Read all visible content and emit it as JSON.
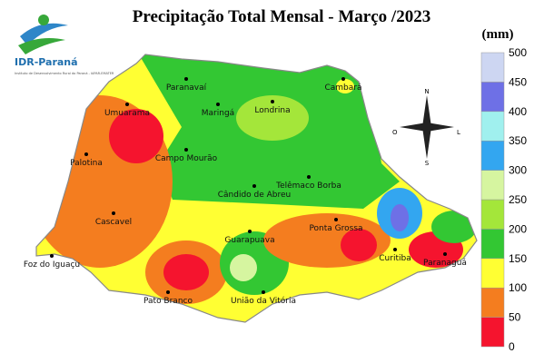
{
  "title": "Precipitação Total Mensal - Março /2023",
  "logo": {
    "name": "IDR-Paraná",
    "subtitle": "Instituto de Desenvolvimento Rural do Paraná - IAPAR-EMATER"
  },
  "compass": {
    "north": "N",
    "south": "S",
    "east": "L",
    "west": "O"
  },
  "legend": {
    "unit": "(mm)",
    "ticks": [
      0,
      50,
      100,
      150,
      200,
      250,
      300,
      350,
      400,
      450,
      500
    ],
    "colors": [
      "#f5142e",
      "#f47d1f",
      "#ffff33",
      "#33c733",
      "#a4e63a",
      "#d6f5a0",
      "#33a6f0",
      "#a0f0ee",
      "#6e70e6",
      "#cdd6f2"
    ]
  },
  "cities": [
    "Paranavaí",
    "Cambará",
    "Maringá",
    "Londrina",
    "Umuarama",
    "Campo Mourão",
    "Palotina",
    "Telêmaco Borba",
    "Cândido de Abreu",
    "Cascavel",
    "Foz do Iguaçu",
    "Guarapuava",
    "Ponta Grossa",
    "Curitiba",
    "Paranaguá",
    "Pato Branco",
    "União da Vitória"
  ]
}
